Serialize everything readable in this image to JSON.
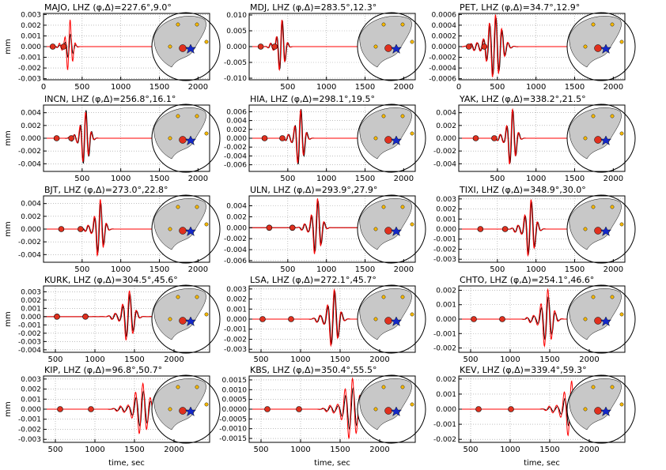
{
  "figure": {
    "xlabel": "time, sec",
    "ylabel": "mm"
  },
  "colors": {
    "observed": "#000000",
    "synthetic": "#ff0000",
    "marker": "#e0301e",
    "station": "#f5b800",
    "epicenter": "#1428c8",
    "land": "#c8c8c8",
    "ocean": "#ffffff"
  },
  "chart_data": [
    {
      "type": "line",
      "title": "MAJO, LHZ (φ,Δ)=227.6°,9.0°",
      "xticks": [
        "0",
        "500",
        "1000",
        "1500",
        "2000"
      ],
      "yticks": [
        "0.003",
        "0.002",
        "0.001",
        "0.000",
        "-0.001",
        "-0.002",
        "-0.003"
      ],
      "xlim": [
        0,
        2150
      ],
      "ylim": [
        -0.0031,
        0.0031
      ],
      "ytick_values": [
        0.003,
        0.002,
        0.001,
        0,
        -0.001,
        -0.002,
        -0.003
      ],
      "xtick_values": [
        0,
        500,
        1000,
        1500,
        2000
      ],
      "packet_center": 340,
      "amp_obs": 0.0012,
      "amp_syn": 0.0026,
      "period": 70,
      "width": 55,
      "markers": [
        120,
        260
      ],
      "series": []
    },
    {
      "type": "line",
      "title": "MDJ, LHZ (φ,Δ)=283.5°,12.3°",
      "xticks": [
        "500",
        "1000",
        "1500",
        "2000"
      ],
      "yticks": [
        "0.010",
        "0.005",
        "0.000",
        "-0.005",
        "-0.010"
      ],
      "xlim": [
        0,
        2150
      ],
      "ylim": [
        -0.0105,
        0.0105
      ],
      "ytick_values": [
        0.01,
        0.005,
        0,
        -0.005,
        -0.01
      ],
      "xtick_values": [
        500,
        1000,
        1500,
        2000
      ],
      "packet_center": 420,
      "amp_obs": 0.0085,
      "amp_syn": 0.0088,
      "period": 75,
      "width": 60,
      "markers": [
        150,
        330
      ],
      "series": []
    },
    {
      "type": "line",
      "title": "PET, LHZ (φ,Δ)=34.7°,12.9°",
      "xticks": [
        "0",
        "500",
        "1000",
        "1500",
        "2000"
      ],
      "yticks": [
        "0.0006",
        "0.0004",
        "0.0002",
        "0.0000",
        "-0.0002",
        "-0.0004",
        "-0.0006"
      ],
      "xlim": [
        0,
        2150
      ],
      "ylim": [
        -0.00062,
        0.00062
      ],
      "ytick_values": [
        0.0006,
        0.0004,
        0.0002,
        0,
        -0.0002,
        -0.0004,
        -0.0006
      ],
      "xtick_values": [
        0,
        500,
        1000,
        1500,
        2000
      ],
      "packet_center": 470,
      "amp_obs": 0.00055,
      "amp_syn": 0.0006,
      "period": 80,
      "width": 120,
      "markers": [
        130,
        330
      ],
      "series": []
    },
    {
      "type": "line",
      "title": "INCN, LHZ (φ,Δ)=256.8°,16.1°",
      "xticks": [
        "500",
        "1000",
        "1500",
        "2000"
      ],
      "yticks": [
        "0.004",
        "0.002",
        "0.000",
        "-0.002",
        "-0.004"
      ],
      "xlim": [
        0,
        2150
      ],
      "ylim": [
        -0.0052,
        0.0052
      ],
      "ytick_values": [
        0.004,
        0.002,
        0,
        -0.002,
        -0.004
      ],
      "xtick_values": [
        500,
        1000,
        1500,
        2000
      ],
      "packet_center": 540,
      "amp_obs": 0.0045,
      "amp_syn": 0.0042,
      "period": 75,
      "width": 70,
      "markers": [
        170,
        360
      ],
      "series": []
    },
    {
      "type": "line",
      "title": "HIA, LHZ (φ,Δ)=298.1°,19.5°",
      "xticks": [
        "500",
        "1000",
        "1500",
        "2000"
      ],
      "yticks": [
        "0.006",
        "0.004",
        "0.002",
        "0.000",
        "-0.002",
        "-0.004",
        "-0.006"
      ],
      "xlim": [
        0,
        2150
      ],
      "ylim": [
        -0.0075,
        0.0075
      ],
      "ytick_values": [
        0.006,
        0.004,
        0.002,
        0,
        -0.002,
        -0.004,
        -0.006
      ],
      "xtick_values": [
        500,
        1000,
        1500,
        2000
      ],
      "packet_center": 660,
      "amp_obs": 0.0068,
      "amp_syn": 0.0065,
      "period": 80,
      "width": 70,
      "markers": [
        200,
        430
      ],
      "series": []
    },
    {
      "type": "line",
      "title": "YAK, LHZ (φ,Δ)=338.2°,21.5°",
      "xticks": [
        "500",
        "1000",
        "1500",
        "2000"
      ],
      "yticks": [
        "0.004",
        "0.002",
        "0.000",
        "-0.002",
        "-0.004"
      ],
      "xlim": [
        0,
        2150
      ],
      "ylim": [
        -0.0052,
        0.0052
      ],
      "ytick_values": [
        0.004,
        0.002,
        0,
        -0.002,
        -0.004
      ],
      "xtick_values": [
        500,
        1000,
        1500,
        2000
      ],
      "packet_center": 690,
      "amp_obs": 0.0045,
      "amp_syn": 0.0047,
      "period": 80,
      "width": 70,
      "markers": [
        220,
        460
      ],
      "series": []
    },
    {
      "type": "line",
      "title": "BJT, LHZ (φ,Δ)=273.0°,22.8°",
      "xticks": [
        "500",
        "1000",
        "1500",
        "2000"
      ],
      "yticks": [
        "0.004",
        "0.002",
        "0.000",
        "-0.002",
        "-0.004"
      ],
      "xlim": [
        0,
        2150
      ],
      "ylim": [
        -0.0052,
        0.0052
      ],
      "ytick_values": [
        0.004,
        0.002,
        0,
        -0.002,
        -0.004
      ],
      "xtick_values": [
        500,
        1000,
        1500,
        2000
      ],
      "packet_center": 730,
      "amp_obs": 0.0042,
      "amp_syn": 0.0048,
      "period": 80,
      "width": 70,
      "markers": [
        230,
        480
      ],
      "series": []
    },
    {
      "type": "line",
      "title": "ULN, LHZ (φ,Δ)=293.9°,27.9°",
      "xticks": [
        "500",
        "1000",
        "1500",
        "2000"
      ],
      "yticks": [
        "0.004",
        "0.002",
        "0.000",
        "-0.002",
        "-0.004",
        "-0.006"
      ],
      "xlim": [
        0,
        2150
      ],
      "ylim": [
        -0.0063,
        0.0058
      ],
      "ytick_values": [
        0.004,
        0.002,
        0,
        -0.002,
        -0.004,
        -0.006
      ],
      "xtick_values": [
        500,
        1000,
        1500,
        2000
      ],
      "packet_center": 880,
      "amp_obs": 0.005,
      "amp_syn": 0.0055,
      "period": 85,
      "width": 75,
      "markers": [
        260,
        560
      ],
      "series": []
    },
    {
      "type": "line",
      "title": "TIXI, LHZ (φ,Δ)=348.9°,30.0°",
      "xticks": [
        "500",
        "1000",
        "1500",
        "2000"
      ],
      "yticks": [
        "0.003",
        "0.002",
        "0.001",
        "0.000",
        "-0.001",
        "-0.002",
        "-0.003"
      ],
      "xlim": [
        0,
        2150
      ],
      "ylim": [
        -0.0033,
        0.0033
      ],
      "ytick_values": [
        0.003,
        0.002,
        0.001,
        0,
        -0.001,
        -0.002,
        -0.003
      ],
      "xtick_values": [
        500,
        1000,
        1500,
        2000
      ],
      "packet_center": 930,
      "amp_obs": 0.0028,
      "amp_syn": 0.003,
      "period": 85,
      "width": 80,
      "markers": [
        280,
        600
      ],
      "series": []
    },
    {
      "type": "line",
      "title": "KURK, LHZ (φ,Δ)=304.5°,45.6°",
      "xticks": [
        "500",
        "1000",
        "1500",
        "2000"
      ],
      "yticks": [
        "0.003",
        "0.002",
        "0.001",
        "0.000",
        "-0.001",
        "-0.002",
        "-0.003",
        "-0.004"
      ],
      "xlim": [
        350,
        2450
      ],
      "ylim": [
        -0.0043,
        0.0037
      ],
      "ytick_values": [
        0.003,
        0.002,
        0.001,
        0,
        -0.001,
        -0.002,
        -0.003,
        -0.004
      ],
      "xtick_values": [
        500,
        1000,
        1500,
        2000
      ],
      "packet_center": 1430,
      "amp_obs": 0.0028,
      "amp_syn": 0.0032,
      "period": 90,
      "width": 85,
      "markers": [
        520,
        880
      ],
      "series": []
    },
    {
      "type": "line",
      "title": "LSA, LHZ (φ,Δ)=272.1°,45.7°",
      "xticks": [
        "500",
        "1000",
        "1500",
        "2000"
      ],
      "yticks": [
        "0.003",
        "0.002",
        "0.001",
        "0.000",
        "-0.001",
        "-0.002",
        "-0.003"
      ],
      "xlim": [
        350,
        2450
      ],
      "ylim": [
        -0.0033,
        0.0033
      ],
      "ytick_values": [
        0.003,
        0.002,
        0.001,
        0,
        -0.001,
        -0.002,
        -0.003
      ],
      "xtick_values": [
        500,
        1000,
        1500,
        2000
      ],
      "packet_center": 1420,
      "amp_obs": 0.0028,
      "amp_syn": 0.003,
      "period": 90,
      "width": 85,
      "markers": [
        520,
        880
      ],
      "series": []
    },
    {
      "type": "line",
      "title": "CHTO, LHZ (φ,Δ)=254.1°,46.6°",
      "xticks": [
        "500",
        "1000",
        "1500",
        "2000"
      ],
      "yticks": [
        "0.002",
        "0.001",
        "0.000",
        "-0.001",
        "-0.002"
      ],
      "xlim": [
        350,
        2450
      ],
      "ylim": [
        -0.0023,
        0.0023
      ],
      "ytick_values": [
        0.002,
        0.001,
        0,
        -0.001,
        -0.002
      ],
      "xtick_values": [
        500,
        1000,
        1500,
        2000
      ],
      "packet_center": 1470,
      "amp_obs": 0.0016,
      "amp_syn": 0.0021,
      "period": 90,
      "width": 90,
      "markers": [
        540,
        900
      ],
      "series": []
    },
    {
      "type": "line",
      "title": "KIP, LHZ (φ,Δ)=96.8°,50.7°",
      "xticks": [
        "500",
        "1000",
        "1500",
        "2000"
      ],
      "yticks": [
        "0.003",
        "0.002",
        "0.001",
        "0.000",
        "-0.001",
        "-0.002",
        "-0.003"
      ],
      "xlim": [
        350,
        2450
      ],
      "ylim": [
        -0.0033,
        0.0033
      ],
      "ytick_values": [
        0.003,
        0.002,
        0.001,
        0,
        -0.001,
        -0.002,
        -0.003
      ],
      "xtick_values": [
        500,
        1000,
        1500,
        2000
      ],
      "packet_center": 1600,
      "amp_obs": 0.0018,
      "amp_syn": 0.0026,
      "period": 95,
      "width": 120,
      "markers": [
        560,
        950
      ],
      "series": []
    },
    {
      "type": "line",
      "title": "KBS, LHZ (φ,Δ)=350.4°,55.5°",
      "xticks": [
        "500",
        "1000",
        "1500",
        "2000"
      ],
      "yticks": [
        "0.0015",
        "0.0010",
        "0.0005",
        "0.0000",
        "-0.0005",
        "-0.0010",
        "-0.0015"
      ],
      "xlim": [
        350,
        2450
      ],
      "ylim": [
        -0.0017,
        0.0017
      ],
      "ytick_values": [
        0.0015,
        0.001,
        0.0005,
        0,
        -0.0005,
        -0.001,
        -0.0015
      ],
      "xtick_values": [
        500,
        1000,
        1500,
        2000
      ],
      "packet_center": 1650,
      "amp_obs": 0.0011,
      "amp_syn": 0.0016,
      "period": 95,
      "width": 120,
      "markers": [
        580,
        980
      ],
      "series": []
    },
    {
      "type": "line",
      "title": "KEV, LHZ (φ,Δ)=339.4°,59.3°",
      "xticks": [
        "500",
        "1000",
        "1500",
        "2000"
      ],
      "yticks": [
        "0.002",
        "0.001",
        "0.000",
        "-0.001",
        "-0.002"
      ],
      "xlim": [
        350,
        2450
      ],
      "ylim": [
        -0.0022,
        0.0022
      ],
      "ytick_values": [
        0.002,
        0.001,
        0,
        -0.001,
        -0.002
      ],
      "xtick_values": [
        500,
        1000,
        1500,
        2000
      ],
      "packet_center": 1770,
      "amp_obs": 0.0012,
      "amp_syn": 0.0019,
      "period": 95,
      "width": 110,
      "markers": [
        600,
        1010
      ],
      "series": []
    }
  ]
}
